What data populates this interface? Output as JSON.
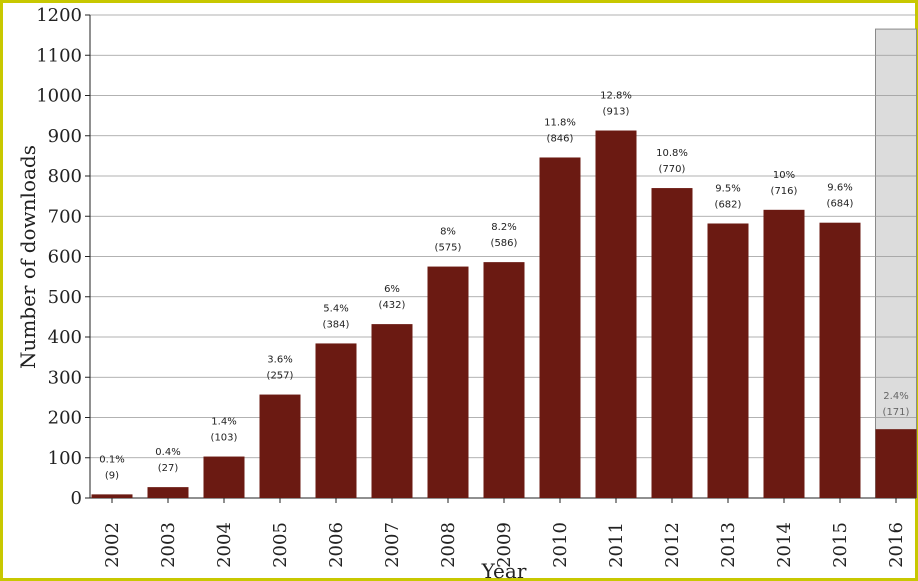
{
  "chart_data": {
    "type": "bar",
    "xlabel": "Year",
    "ylabel": "Number of downloads",
    "ylim": [
      0,
      1200
    ],
    "yticks": [
      0,
      100,
      200,
      300,
      400,
      500,
      600,
      700,
      800,
      900,
      1000,
      1100,
      1200
    ],
    "grid": "horizontal",
    "categories": [
      "2002",
      "2003",
      "2004",
      "2005",
      "2006",
      "2007",
      "2008",
      "2009",
      "2010",
      "2011",
      "2012",
      "2013",
      "2014",
      "2015",
      "2016"
    ],
    "values": [
      9,
      27,
      103,
      257,
      384,
      432,
      575,
      586,
      846,
      913,
      770,
      682,
      716,
      684,
      171
    ],
    "percent_labels": [
      "0.1%",
      "0.4%",
      "1.4%",
      "3.6%",
      "5.4%",
      "6%",
      "8%",
      "8.2%",
      "11.8%",
      "12.8%",
      "10.8%",
      "9.5%",
      "10%",
      "9.6%",
      "2.4%"
    ],
    "count_labels": [
      "(9)",
      "(27)",
      "(103)",
      "(257)",
      "(384)",
      "(432)",
      "(575)",
      "(586)",
      "(846)",
      "(913)",
      "(770)",
      "(682)",
      "(716)",
      "(684)",
      "(171)"
    ],
    "highlight": {
      "category": "2016",
      "shaded_background_to": 1165
    },
    "colors": {
      "bar": "#6b1a12",
      "highlight_background": "#dcdcdc",
      "grid": "#999999",
      "frame": "#c8c800"
    }
  }
}
